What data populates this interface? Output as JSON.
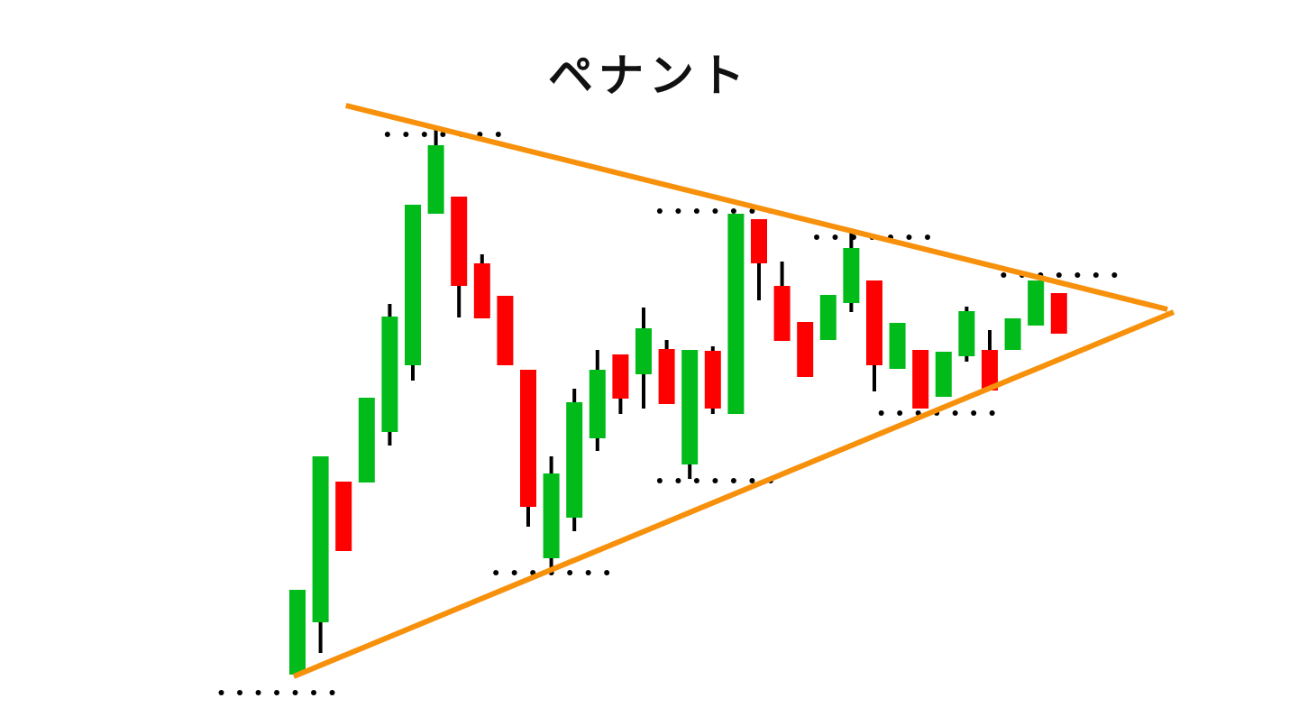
{
  "chart_data": {
    "type": "candlestick",
    "title": "ペナント",
    "xlabel": "",
    "ylabel": "",
    "grid": false,
    "colors": {
      "up": "#00bb1a",
      "down": "#ff0000",
      "wick": "#000000",
      "trendline": "#f7900a",
      "level": "#000000"
    },
    "candles": [
      {
        "o": 52,
        "c": 146,
        "h": 146,
        "l": 52
      },
      {
        "o": 110,
        "c": 294,
        "h": 294,
        "l": 76
      },
      {
        "o": 266,
        "c": 189,
        "h": 266,
        "l": 189
      },
      {
        "o": 265,
        "c": 359,
        "h": 359,
        "l": 265
      },
      {
        "o": 321,
        "c": 449,
        "h": 463,
        "l": 306
      },
      {
        "o": 395,
        "c": 573,
        "h": 573,
        "l": 378
      },
      {
        "o": 563,
        "c": 639,
        "h": 658,
        "l": 563
      },
      {
        "o": 582,
        "c": 483,
        "h": 582,
        "l": 448
      },
      {
        "o": 508,
        "c": 447,
        "h": 518,
        "l": 447
      },
      {
        "o": 472,
        "c": 395,
        "h": 472,
        "l": 395
      },
      {
        "o": 390,
        "c": 238,
        "h": 390,
        "l": 216
      },
      {
        "o": 181,
        "c": 275,
        "h": 294,
        "l": 168
      },
      {
        "o": 226,
        "c": 354,
        "h": 369,
        "l": 211
      },
      {
        "o": 314,
        "c": 390,
        "h": 412,
        "l": 300
      },
      {
        "o": 407,
        "c": 358,
        "h": 407,
        "l": 341
      },
      {
        "o": 385,
        "c": 436,
        "h": 459,
        "l": 347
      },
      {
        "o": 413,
        "c": 352,
        "h": 423,
        "l": 352
      },
      {
        "o": 285,
        "c": 412,
        "h": 412,
        "l": 269
      },
      {
        "o": 411,
        "c": 347,
        "h": 416,
        "l": 341
      },
      {
        "o": 341,
        "c": 563,
        "h": 563,
        "l": 341
      },
      {
        "o": 557,
        "c": 508,
        "h": 557,
        "l": 467
      },
      {
        "o": 483,
        "c": 422,
        "h": 510,
        "l": 422
      },
      {
        "o": 443,
        "c": 382,
        "h": 443,
        "l": 382
      },
      {
        "o": 423,
        "c": 473,
        "h": 473,
        "l": 423
      },
      {
        "o": 464,
        "c": 525,
        "h": 542,
        "l": 454
      },
      {
        "o": 489,
        "c": 395,
        "h": 489,
        "l": 366
      },
      {
        "o": 391,
        "c": 442,
        "h": 442,
        "l": 391
      },
      {
        "o": 412,
        "c": 347,
        "h": 412,
        "l": 347
      },
      {
        "o": 360,
        "c": 410,
        "h": 410,
        "l": 360
      },
      {
        "o": 405,
        "c": 455,
        "h": 460,
        "l": 399
      },
      {
        "o": 412,
        "c": 367,
        "h": 434,
        "l": 367
      },
      {
        "o": 412,
        "c": 447,
        "h": 447,
        "l": 412
      },
      {
        "o": 439,
        "c": 489,
        "h": 489,
        "l": 439
      },
      {
        "o": 475,
        "c": 430,
        "h": 475,
        "l": 430
      }
    ],
    "trendlines": [
      {
        "from": [
          2.1,
          683
        ],
        "to": [
          37.7,
          457
        ]
      },
      {
        "from": [
          -0.16,
          50
        ],
        "to": [
          37.97,
          454
        ]
      }
    ],
    "levels": [
      {
        "value": 32,
        "from": -3.3,
        "to": 1.6
      },
      {
        "value": 651,
        "from": 3.9,
        "to": 8.7
      },
      {
        "value": 566,
        "from": 15.7,
        "to": 20.6
      },
      {
        "value": 537,
        "from": 22.5,
        "to": 27.3
      },
      {
        "value": 495,
        "from": 30.6,
        "to": 35.4
      },
      {
        "value": 267,
        "from": 15.7,
        "to": 20.6
      },
      {
        "value": 165,
        "from": 8.6,
        "to": 13.4
      },
      {
        "value": 342,
        "from": 25.3,
        "to": 30.1
      }
    ]
  }
}
